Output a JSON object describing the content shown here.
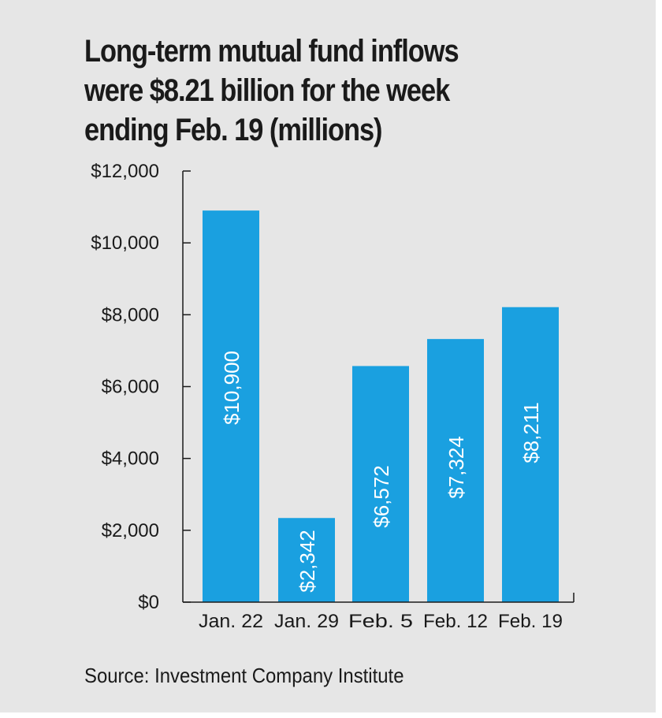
{
  "title_lines": [
    "Long-term mutual fund inflows",
    "were $8.21 billion for the week",
    "ending Feb. 19 (millions)"
  ],
  "source": "Source: Investment Company Institute",
  "colors": {
    "bar": "#1aa0e0",
    "background": "#e6e6e6",
    "text": "#1a1a1a",
    "bar_label": "#ffffff"
  },
  "chart_data": {
    "type": "bar",
    "title": "Long-term mutual fund inflows were $8.21 billion for the week ending Feb. 19 (millions)",
    "categories": [
      "Jan. 22",
      "Jan. 29",
      "Feb. 5",
      "Feb. 12",
      "Feb. 19"
    ],
    "values": [
      10900,
      2342,
      6572,
      7324,
      8211
    ],
    "value_labels": [
      "$10,900",
      "$2,342",
      "$6,572",
      "$7,324",
      "$8,211"
    ],
    "ylim": [
      0,
      12000
    ],
    "yticks": [
      0,
      2000,
      4000,
      6000,
      8000,
      10000,
      12000
    ],
    "ytick_labels": [
      "$0",
      "$2,000",
      "$4,000",
      "$6,000",
      "$8,000",
      "$10,000",
      "$12,000"
    ],
    "xlabel": "",
    "ylabel": "",
    "grid": false,
    "legend": "none"
  }
}
